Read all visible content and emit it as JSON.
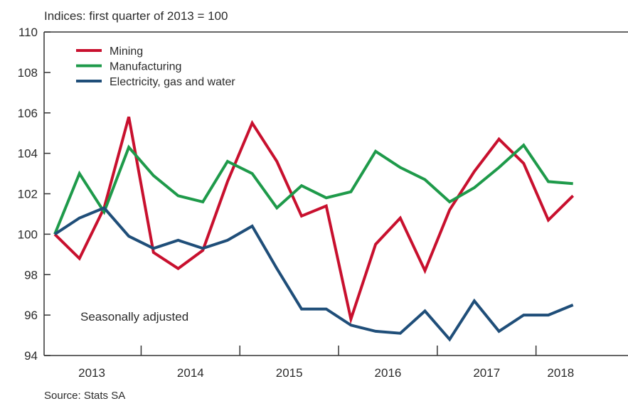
{
  "chart_data": {
    "type": "line",
    "unit_label": "Indices: first quarter of 2013 = 100",
    "annotation": "Seasonally adjusted",
    "source": "Source: Stats SA",
    "x": [
      "2013Q1",
      "2013Q2",
      "2013Q3",
      "2013Q4",
      "2014Q1",
      "2014Q2",
      "2014Q3",
      "2014Q4",
      "2015Q1",
      "2015Q2",
      "2015Q3",
      "2015Q4",
      "2016Q1",
      "2016Q2",
      "2016Q3",
      "2016Q4",
      "2017Q1",
      "2017Q2",
      "2017Q3",
      "2017Q4",
      "2018Q1",
      "2018Q2"
    ],
    "year_labels": [
      "2013",
      "2014",
      "2015",
      "2016",
      "2017",
      "2018"
    ],
    "ylim": [
      94,
      110
    ],
    "yticks": [
      "94",
      "96",
      "98",
      "100",
      "102",
      "104",
      "106",
      "108",
      "110"
    ],
    "grid": false,
    "legend_position": "top-left",
    "series": [
      {
        "name": "Mining",
        "color": "#c8102e",
        "values": [
          100.0,
          98.8,
          101.3,
          105.8,
          99.1,
          98.3,
          99.2,
          102.6,
          105.5,
          103.6,
          100.9,
          101.4,
          95.8,
          99.5,
          100.8,
          98.2,
          101.2,
          103.1,
          104.7,
          103.5,
          100.7,
          101.9
        ]
      },
      {
        "name": "Manufacturing",
        "color": "#1e9a4a",
        "values": [
          100.0,
          103.0,
          101.1,
          104.3,
          102.9,
          101.9,
          101.6,
          103.6,
          103.0,
          101.3,
          102.4,
          101.8,
          102.1,
          104.1,
          103.3,
          102.7,
          101.6,
          102.3,
          103.3,
          104.4,
          102.6,
          102.5
        ]
      },
      {
        "name": "Electricity, gas and water",
        "color": "#1f4e79",
        "values": [
          100.0,
          100.8,
          101.3,
          99.9,
          99.3,
          99.7,
          99.3,
          99.7,
          100.4,
          98.3,
          96.3,
          96.3,
          95.5,
          95.2,
          95.1,
          96.2,
          94.8,
          96.7,
          95.2,
          96.0,
          96.0,
          96.5
        ]
      }
    ]
  }
}
